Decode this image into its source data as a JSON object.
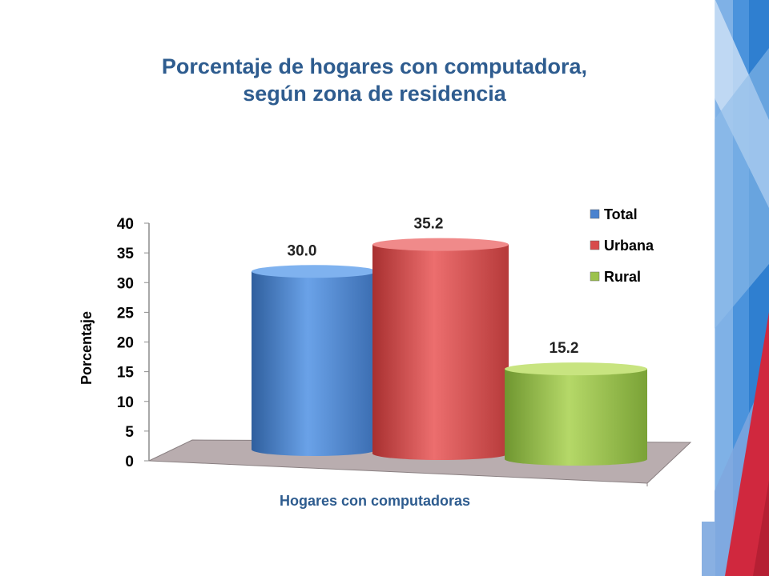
{
  "slide": {
    "title_line1": "Porcentaje de hogares con computadora,",
    "title_line2": "según zona de residencia"
  },
  "colors": {
    "title": "#2e5c8f",
    "total": "#4a82cf",
    "urbana": "#d84c4c",
    "rural": "#9cc24c",
    "floor": "#b8acae",
    "accent_blue": "#2f7fd0",
    "accent_red": "#d0283e"
  },
  "chart_data": {
    "type": "bar",
    "xlabel": "Hogares con computadoras",
    "ylabel": "Porcentaje",
    "ylim": [
      0,
      40
    ],
    "yticks": [
      "0",
      "5",
      "10",
      "15",
      "20",
      "25",
      "30",
      "35",
      "40"
    ],
    "legend_position": "top-right",
    "series": [
      {
        "name": "Total",
        "value": 30.0,
        "label": "30.0",
        "color": "#4a82cf"
      },
      {
        "name": "Urbana",
        "value": 35.2,
        "label": "35.2",
        "color": "#d84c4c"
      },
      {
        "name": "Rural",
        "value": 15.2,
        "label": "15.2",
        "color": "#9cc24c"
      }
    ]
  }
}
